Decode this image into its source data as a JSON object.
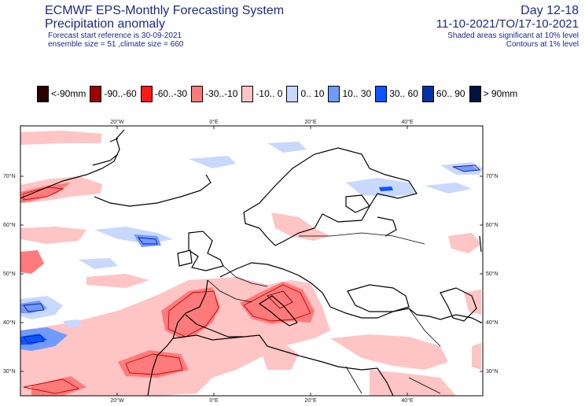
{
  "header": {
    "title": "ECMWF EPS-Monthly Forecasting System",
    "subtitle": "Precipitation anomaly",
    "forecast_ref": "Forecast start reference is 30-09-2021",
    "ensemble": "ensemble size = 51  ,climate size = 660",
    "day_range": "Day 12-18",
    "period": "11-10-2021/TO/17-10-2021",
    "shading_note": "Shaded areas significant at 10% level",
    "contour_note": "Contours at 1% level"
  },
  "legend": [
    {
      "label": "<-90mm",
      "color": "#2b0000"
    },
    {
      "label": "-90..-60",
      "color": "#9c0000"
    },
    {
      "label": "-60..-30",
      "color": "#ff1a1a"
    },
    {
      "label": "-30..-10",
      "color": "#ff7b7b"
    },
    {
      "label": "-10..  0",
      "color": "#ffc4c4"
    },
    {
      "label": "0.. 10",
      "color": "#c8d8ff"
    },
    {
      "label": "10.. 30",
      "color": "#6f9bff"
    },
    {
      "label": "30.. 60",
      "color": "#0a55ff"
    },
    {
      "label": "60.. 90",
      "color": "#0030a8"
    },
    {
      "label": "> 90mm",
      "color": "#001440"
    }
  ],
  "map": {
    "top_ticks": [
      "20°W",
      "0°E",
      "20°E",
      "40°E"
    ],
    "bottom_ticks": [
      "20°W",
      "0°E",
      "20°E",
      "40°E"
    ],
    "left_ticks": [
      "70°N",
      "60°N",
      "50°N",
      "40°N",
      "30°N"
    ],
    "right_ticks": [
      "70°N",
      "60°N",
      "50°N",
      "40°N",
      "30°N"
    ]
  }
}
